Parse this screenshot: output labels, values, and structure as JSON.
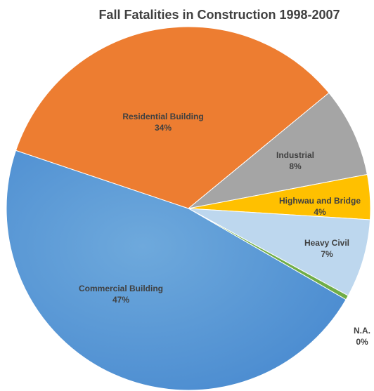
{
  "chart_data": {
    "type": "pie",
    "title": "Fall Fatalities in Construction 1998-2007",
    "categories": [
      "Residential Building",
      "Industrial",
      "Highwau and Bridge",
      "Heavy Civil",
      "N.A.",
      "Commercial Building"
    ],
    "values": [
      34,
      8,
      4,
      7,
      0.4,
      47
    ],
    "value_labels": [
      "34%",
      "8%",
      "4%",
      "7%",
      "0%",
      "47%"
    ],
    "colors": [
      "#ed7d31",
      "#a5a5a5",
      "#ffc000",
      "#bdd7ee",
      "#70ad47",
      "#5b9bd5"
    ]
  }
}
